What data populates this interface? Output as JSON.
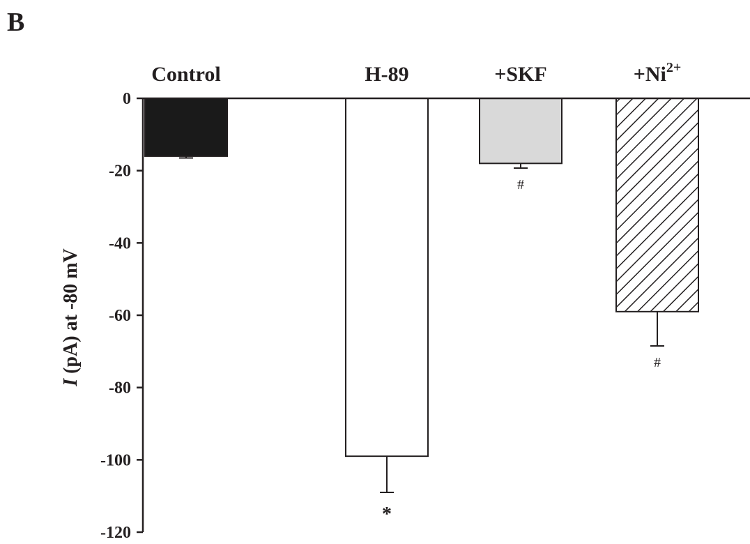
{
  "panel_label": "B",
  "chart_data": {
    "type": "bar",
    "categories": [
      "Control",
      "H-89",
      "+SKF",
      "+Ni"
    ],
    "category_superscripts": [
      "",
      "",
      "",
      "2+"
    ],
    "values": [
      -16,
      -99,
      -18,
      -59
    ],
    "errors": [
      0.5,
      10,
      1.3,
      9.5
    ],
    "significance": [
      "",
      "*",
      "#",
      "#"
    ],
    "fills": [
      "#1a1a1a",
      "#ffffff",
      "#d9d9d9",
      "hatch"
    ],
    "ylabel_italic": "I",
    "ylabel_rest": " (pA) at -80 mV",
    "ylim": [
      -120,
      0
    ],
    "yticks": [
      0,
      -20,
      -40,
      -60,
      -80,
      -100,
      -120
    ],
    "ytick_labels": [
      "0",
      "-20",
      "-40",
      "-60",
      "-80",
      "-100",
      "-120"
    ],
    "grid": false,
    "colors": {
      "ink": "#231f20",
      "edge": "#231f20"
    }
  }
}
